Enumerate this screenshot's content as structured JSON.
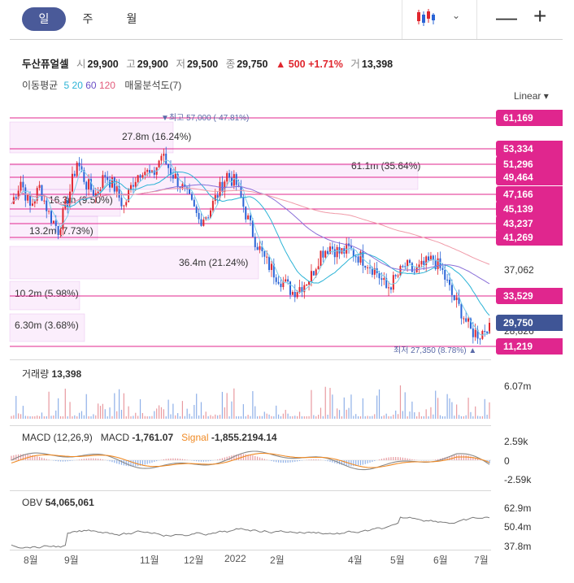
{
  "tabs": [
    {
      "label": "일",
      "active": true
    },
    {
      "label": "주",
      "active": false
    },
    {
      "label": "월",
      "active": false
    }
  ],
  "toolbar": {
    "chart_type_icon": "candlestick-icon",
    "dropdown_icon": "chevron-down-icon",
    "zoom_out": "—",
    "zoom_in": "+"
  },
  "quote": {
    "name": "두산퓨얼셀",
    "open_label": "시",
    "open": "29,900",
    "high_label": "고",
    "high": "29,900",
    "low_label": "저",
    "low": "29,500",
    "close_label": "종",
    "close": "29,750",
    "change": "▲ 500",
    "change_pct": "+1.71%",
    "volume_label": "거",
    "volume": "13,398"
  },
  "indicators": {
    "ma_label": "이동평균",
    "ma5": "5",
    "ma20": "20",
    "ma60": "60",
    "ma120": "120",
    "profile_label": "매물분석도(7)"
  },
  "scale_type": "Linear ▾",
  "price_levels": [
    "61,169",
    "53,334",
    "51,296",
    "49,464",
    "47,166",
    "45,139",
    "43,237",
    "41,269",
    "33,529",
    "29,750",
    "11,219"
  ],
  "axis_prices": {
    "mid": "37,062",
    "low": "28,826"
  },
  "annotations": {
    "high": "▼최고  57,000 (-47.81%)",
    "low": "최저  27,350 (8.78%) ▲"
  },
  "volume_profile": [
    {
      "label": "27.8m (16.24%)"
    },
    {
      "label": "61.1m (35.64%)"
    },
    {
      "label": "16.3m (9.50%)"
    },
    {
      "label": "13.2m (7.73%)"
    },
    {
      "label": "36.4m (21.24%)"
    },
    {
      "label": "10.2m (5.98%)"
    },
    {
      "label": "6.30m (3.68%)"
    }
  ],
  "volume_panel": {
    "label": "거래량",
    "value": "13,398",
    "axis_max": "6.07m"
  },
  "macd_panel": {
    "label": "MACD (12,26,9)",
    "macd_label": "MACD",
    "macd_value": "-1,761.07",
    "signal_label": "Signal",
    "signal_value": "-1,855.2194.14",
    "axis": [
      "2.59k",
      "0",
      "-2.59k"
    ]
  },
  "obv_panel": {
    "label": "OBV",
    "value": "54,065,061",
    "axis": [
      "62.9m",
      "50.4m",
      "37.8m"
    ]
  },
  "months": [
    "8월",
    "9월",
    "11월",
    "12월",
    "2022",
    "2월",
    "4월",
    "5월",
    "6월",
    "7월"
  ],
  "colors": {
    "accent": "#4a5a99",
    "level": "#e0268e",
    "up": "#e0262e",
    "down": "#2a64d6",
    "signal": "#f08a24"
  },
  "chart_data": {
    "type": "candlestick",
    "price_overlay_levels": [
      61169,
      53334,
      51296,
      49464,
      47166,
      45139,
      43237,
      41269,
      33529,
      11219
    ],
    "last_close": 29750,
    "high": 57000,
    "low": 27350,
    "close_path": [
      [
        0,
        48000
      ],
      [
        4,
        51500
      ],
      [
        8,
        47500
      ],
      [
        12,
        50500
      ],
      [
        16,
        46500
      ],
      [
        20,
        44000
      ],
      [
        24,
        48500
      ],
      [
        28,
        54500
      ],
      [
        32,
        51000
      ],
      [
        36,
        49500
      ],
      [
        40,
        52500
      ],
      [
        44,
        50500
      ],
      [
        48,
        47500
      ],
      [
        52,
        51500
      ],
      [
        56,
        53500
      ],
      [
        60,
        52000
      ],
      [
        64,
        55500
      ],
      [
        68,
        53000
      ],
      [
        72,
        51000
      ],
      [
        76,
        48500
      ],
      [
        80,
        45500
      ],
      [
        84,
        46500
      ],
      [
        88,
        49500
      ],
      [
        92,
        52500
      ],
      [
        96,
        51000
      ],
      [
        100,
        46500
      ],
      [
        104,
        42500
      ],
      [
        108,
        39500
      ],
      [
        112,
        37500
      ],
      [
        116,
        36000
      ],
      [
        120,
        34500
      ],
      [
        124,
        35500
      ],
      [
        128,
        37000
      ],
      [
        132,
        40500
      ],
      [
        136,
        41500
      ],
      [
        140,
        40500
      ],
      [
        144,
        41000
      ],
      [
        148,
        40000
      ],
      [
        152,
        39000
      ],
      [
        156,
        37500
      ],
      [
        160,
        35000
      ],
      [
        164,
        36500
      ],
      [
        168,
        38500
      ],
      [
        172,
        37500
      ],
      [
        176,
        38500
      ],
      [
        180,
        39500
      ],
      [
        184,
        37500
      ],
      [
        188,
        34000
      ],
      [
        192,
        31500
      ],
      [
        196,
        28500
      ],
      [
        200,
        28000
      ],
      [
        204,
        29750
      ]
    ],
    "volume_axis_max": "6.07m",
    "macd_axis": [
      2590,
      0,
      -2590
    ],
    "obv_axis": [
      "62.9m",
      "50.4m",
      "37.8m"
    ],
    "x_tick_labels": [
      "8월",
      "9월",
      "11월",
      "12월",
      "2022",
      "2월",
      "4월",
      "5월",
      "6월",
      "7월"
    ]
  }
}
